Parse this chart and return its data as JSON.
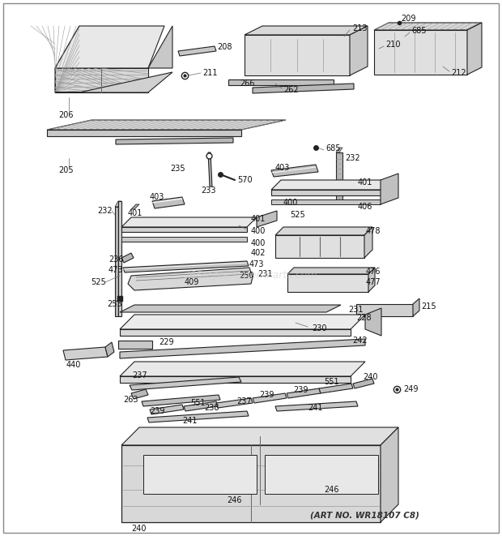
{
  "background_color": "#f5f5f0",
  "border_color": "#333333",
  "art_no_text": "(ART NO. WR18107 C8)",
  "watermark": "365replacementParts.com",
  "fig_width": 6.2,
  "fig_height": 6.61,
  "dpi": 100
}
